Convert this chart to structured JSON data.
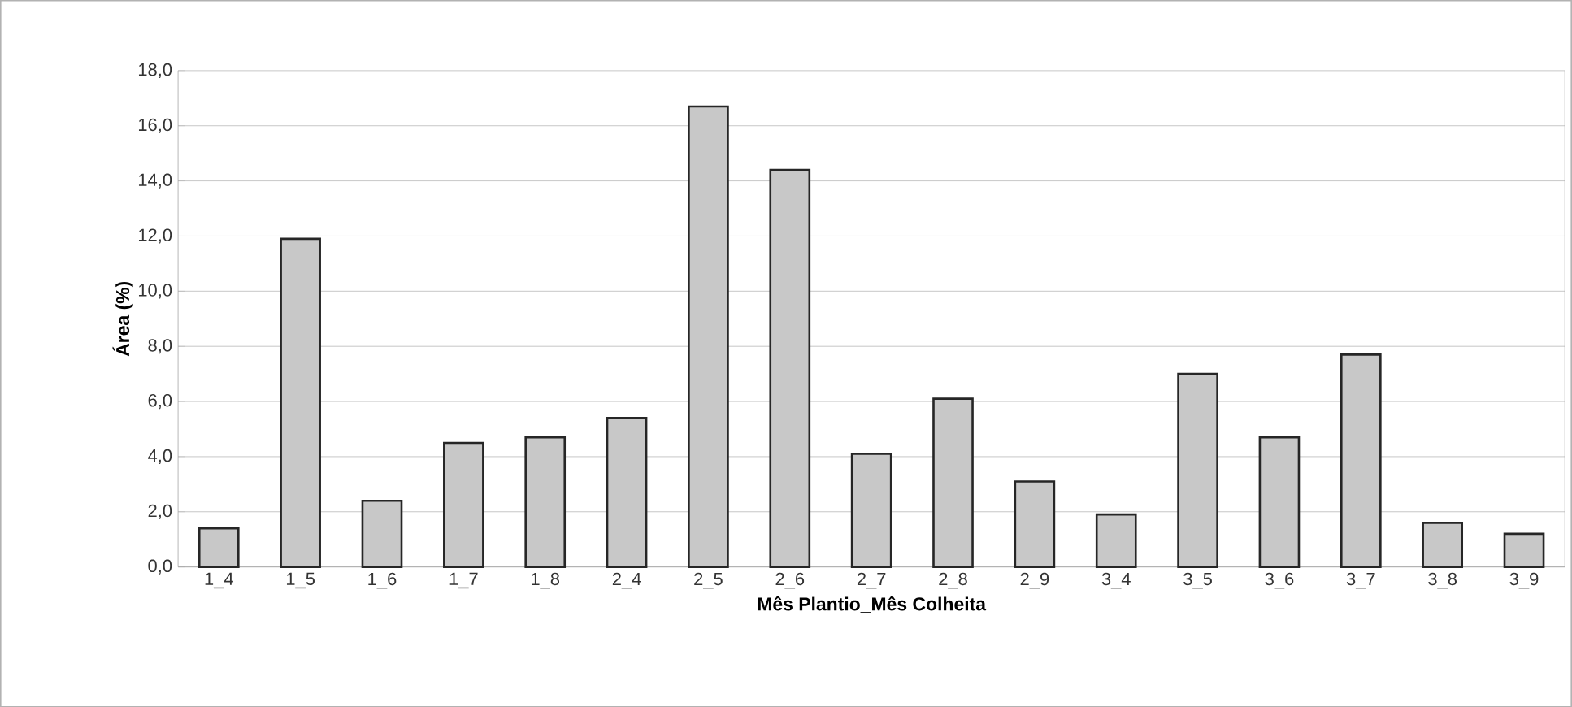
{
  "chart_data": {
    "type": "bar",
    "xlabel": "Mês Plantio_Mês Colheita",
    "ylabel": "Área (%)",
    "categories": [
      "1_4",
      "1_5",
      "1_6",
      "1_7",
      "1_8",
      "2_4",
      "2_5",
      "2_6",
      "2_7",
      "2_8",
      "2_9",
      "3_4",
      "3_5",
      "3_6",
      "3_7",
      "3_8",
      "3_9"
    ],
    "values": [
      1.4,
      11.9,
      2.4,
      4.5,
      4.7,
      5.4,
      16.7,
      14.4,
      4.1,
      6.1,
      3.1,
      1.9,
      7.0,
      4.7,
      7.7,
      1.6,
      1.2
    ],
    "color": "#c8c8c8",
    "ylim": [
      0,
      18
    ],
    "yticks": [
      {
        "value": 0,
        "label": "0,0"
      },
      {
        "value": 2,
        "label": "2,0"
      },
      {
        "value": 4,
        "label": "4,0"
      },
      {
        "value": 6,
        "label": "6,0"
      },
      {
        "value": 8,
        "label": "8,0"
      },
      {
        "value": 10,
        "label": "10,0"
      },
      {
        "value": 12,
        "label": "12,0"
      },
      {
        "value": 14,
        "label": "14,0"
      },
      {
        "value": 16,
        "label": "16,0"
      },
      {
        "value": 18,
        "label": "18,0"
      }
    ],
    "grid": "y"
  }
}
